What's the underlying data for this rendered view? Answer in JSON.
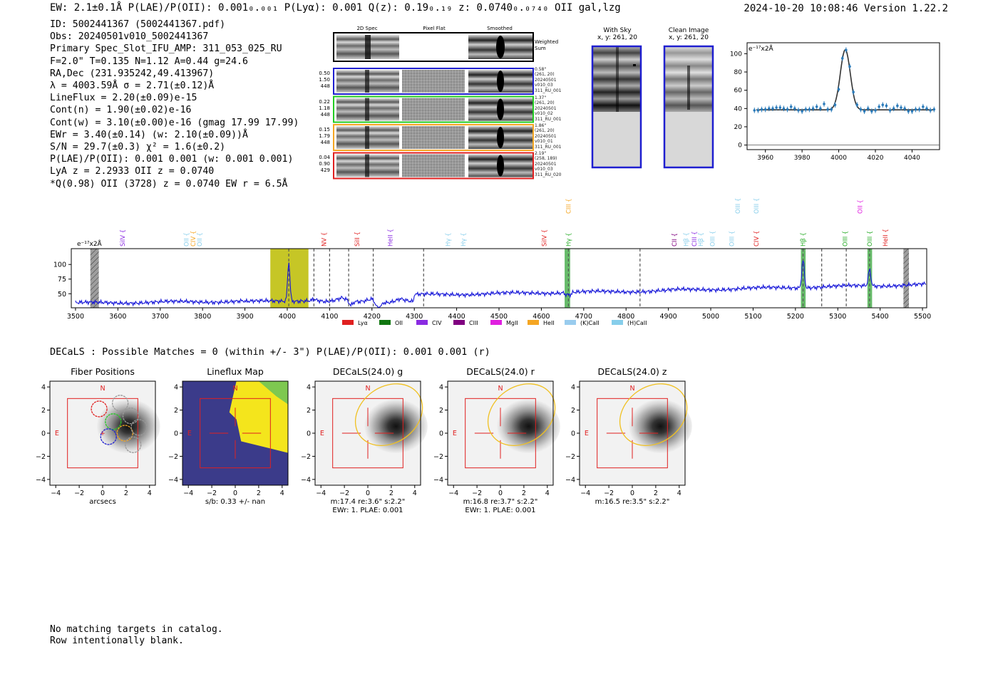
{
  "header": {
    "left": "EW: 2.1±0.1Å  P(LAE)/P(OII): 0.001₀.₀₀₁  P(Lyα): 0.001  Q(z): 0.19₀.₁₉  z: 0.0740₀.₀₇₄₀  OII   gal,lzg",
    "right": "2024-10-20 10:08:46  Version 1.22.2"
  },
  "info_lines": [
    "ID: 5002441367 (5002441367.pdf)",
    "Obs: 20240501v010_5002441367",
    "Primary Spec_Slot_IFU_AMP: 311_053_025_RU",
    "F=2.0\"  T=0.135  N=1.12  A=0.44  g=24.6",
    "RA,Dec (231.935242,49.413967)",
    "λ = 4003.59Å  σ = 2.71(±0.12)Å",
    "LineFlux = 2.20(±0.09)e-15",
    "Cont(n) = 1.90(±0.02)e-16",
    "Cont(w) = 3.10(±0.00)e-16 (gmag 17.99 17.99)",
    "EWr = 3.40(±0.14)  (w: 2.10(±0.09))Å",
    "S/N = 29.7(±0.3)  χ² = 1.6(±0.2)",
    "P(LAE)/P(OII): 0.001 0.001 (w: 0.001 0.001)",
    "LyA z = 2.2933  OII z = 0.0740",
    "*Q(0.98) OII (3728) z = 0.0740  EW r = 6.5Å"
  ],
  "cutouts": {
    "col_headers": [
      "2D Spec",
      "Pixel Flat",
      "Smoothed"
    ],
    "weighted_label": "Weighted Sum",
    "rows": [
      {
        "nums": [
          "0.50",
          "1.50",
          "448"
        ],
        "side": [
          "0.58\"",
          "(261, 20)",
          "20240501",
          "v010_03",
          "311_RU_001"
        ],
        "color": "#1f1fd0"
      },
      {
        "nums": [
          "0.22",
          "1.18",
          "448"
        ],
        "side": [
          "1.37\"",
          "(261, 20)",
          "20240501",
          "v010_02",
          "311_RU_001"
        ],
        "color": "#22cc22"
      },
      {
        "nums": [
          "0.15",
          "1.79",
          "448"
        ],
        "side": [
          "1.86\"",
          "(261, 20)",
          "20240501",
          "v010_01",
          "311_RU_001"
        ],
        "color": "#f5a623"
      },
      {
        "nums": [
          "0.04",
          "0.90",
          "429"
        ],
        "side": [
          "2.19\"",
          "(258, 189)",
          "20240501",
          "v010_03",
          "311_RU_020"
        ],
        "color": "#e02020"
      }
    ],
    "with_sky": {
      "title": "With Sky",
      "coords": "x, y: 261, 20"
    },
    "clean": {
      "title": "Clean Image",
      "coords": "x, y: 261, 20"
    }
  },
  "decals_line": "DECaLS : Possible Matches = 0 (within +/- 3\")  P(LAE)/P(OII): 0.001 0.001 (r)",
  "panels": [
    {
      "title": "Fiber Positions",
      "sub1": "arcsecs",
      "sub2": ""
    },
    {
      "title": "Lineflux Map",
      "sub1": "s/b: 0.33 +/- nan",
      "sub2": ""
    },
    {
      "title": "DECaLS(24.0) g",
      "sub1": "m:17.4  re:3.6\"  s:2.2\"",
      "sub2": "EWr: 1. PLAE: 0.001"
    },
    {
      "title": "DECaLS(24.0) r",
      "sub1": "m:16.8  re:3.7\"  s:2.2\"",
      "sub2": "EWr: 1. PLAE: 0.001"
    },
    {
      "title": "DECaLS(24.0) z",
      "sub1": "m:16.5  re:3.5\"  s:2.2\"",
      "sub2": ""
    }
  ],
  "footer": [
    "No matching targets in catalog.",
    "Row intentionally blank."
  ],
  "chart_data": [
    {
      "type": "scatter",
      "name": "line-fit",
      "ylabel": "e⁻¹⁷x2Å",
      "xlim": [
        3950,
        4055
      ],
      "ylim": [
        -5,
        112
      ],
      "xticks": [
        3960,
        3980,
        4000,
        4020,
        4040
      ],
      "yticks": [
        0,
        20,
        40,
        60,
        80,
        100
      ],
      "fit": {
        "center": 4003.59,
        "sigma": 2.71,
        "amplitude": 66,
        "continuum": 38.5
      },
      "points_x": [
        3954,
        3956,
        3958,
        3960,
        3962,
        3964,
        3966,
        3968,
        3970,
        3972,
        3974,
        3976,
        3978,
        3980,
        3982,
        3984,
        3986,
        3988,
        3990,
        3992,
        3994,
        3996,
        3998,
        4000,
        4002,
        4004,
        4006,
        4008,
        4010,
        4012,
        4014,
        4016,
        4018,
        4020,
        4022,
        4024,
        4026,
        4028,
        4030,
        4032,
        4034,
        4036,
        4038,
        4040,
        4042,
        4044,
        4046,
        4048,
        4050,
        4052
      ],
      "points_y": [
        38,
        38,
        39,
        39,
        40,
        40,
        41,
        41,
        40,
        39,
        42,
        40,
        38,
        37,
        39,
        39,
        40,
        42,
        40,
        45,
        39,
        39,
        44,
        61,
        95,
        104,
        86,
        58,
        44,
        39,
        37,
        40,
        37,
        38,
        42,
        44,
        43,
        38,
        40,
        43,
        41,
        40,
        37,
        37,
        39,
        39,
        42,
        40,
        38,
        39
      ]
    },
    {
      "type": "line",
      "name": "full-spectrum",
      "ylabel": "e⁻¹⁷x2Å",
      "xlim": [
        3490,
        5510
      ],
      "ylim": [
        26,
        127
      ],
      "xticks": [
        3500,
        3600,
        3700,
        3800,
        3900,
        4000,
        4100,
        4200,
        4300,
        4400,
        4500,
        4600,
        4700,
        4800,
        4900,
        5000,
        5100,
        5200,
        5300,
        5400,
        5500
      ],
      "yticks": [
        50,
        75,
        100
      ],
      "peak_a": 4003.59,
      "peak_b": 5218,
      "peak_c": 5375,
      "highlight_bands": [
        {
          "x0": 3960,
          "x1": 4050,
          "color": "#bcbc00"
        },
        {
          "x0": 4655,
          "x1": 4668,
          "color": "#4caf50"
        },
        {
          "x0": 5213,
          "x1": 5224,
          "color": "#4caf50"
        },
        {
          "x0": 5370,
          "x1": 5381,
          "color": "#4caf50"
        }
      ],
      "hatch_bands": [
        {
          "x0": 3535,
          "x1": 3555
        },
        {
          "x0": 5455,
          "x1": 5468
        }
      ],
      "dashed_lines": [
        4003.6,
        4063,
        4100,
        4145,
        4203,
        4322,
        4664,
        4833,
        5218,
        5262,
        5320,
        5375
      ],
      "line_marks": [
        {
          "label": "SiIV",
          "x": 3611,
          "color": "#8a2be2",
          "row": 0
        },
        {
          "label": "OII",
          "x": 3762,
          "color": "#87ceeb",
          "row": 0
        },
        {
          "label": "CIV",
          "x": 3778,
          "color": "#f5a623",
          "row": 0
        },
        {
          "label": "OII",
          "x": 3793,
          "color": "#87ceeb",
          "row": 0
        },
        {
          "label": "NV",
          "x": 4087,
          "color": "#e02020",
          "row": 0
        },
        {
          "label": "SiII",
          "x": 4165,
          "color": "#e02020",
          "row": 0
        },
        {
          "label": "HeII",
          "x": 4243,
          "color": "#8a2be2",
          "row": 0
        },
        {
          "label": "Hγ",
          "x": 4380,
          "color": "#87ceeb",
          "row": 0
        },
        {
          "label": "Hγ",
          "x": 4416,
          "color": "#87ceeb",
          "row": 0
        },
        {
          "label": "SiIV",
          "x": 4607,
          "color": "#e02020",
          "row": 0
        },
        {
          "label": "CIII",
          "x": 4664,
          "color": "#f5a623",
          "row": 1
        },
        {
          "label": "Hγ",
          "x": 4664,
          "color": "#22aa22",
          "row": 0
        },
        {
          "label": "CII",
          "x": 4914,
          "color": "#800080",
          "row": 0
        },
        {
          "label": "Hβ",
          "x": 4942,
          "color": "#87ceeb",
          "row": 0
        },
        {
          "label": "CIII",
          "x": 4961,
          "color": "#8a2be2",
          "row": 0
        },
        {
          "label": "Hβ",
          "x": 4976,
          "color": "#87ceeb",
          "row": 0
        },
        {
          "label": "OIII",
          "x": 5004,
          "color": "#87ceeb",
          "row": 0
        },
        {
          "label": "OIII",
          "x": 5050,
          "color": "#87ceeb",
          "row": 0
        },
        {
          "label": "OIII",
          "x": 5064,
          "color": "#87ceeb",
          "row": 1
        },
        {
          "label": "OIII",
          "x": 5108,
          "color": "#87ceeb",
          "row": 1
        },
        {
          "label": "CIV",
          "x": 5108,
          "color": "#e02020",
          "row": 0
        },
        {
          "label": "Hβ",
          "x": 5218,
          "color": "#22aa22",
          "row": 0
        },
        {
          "label": "OIII",
          "x": 5317,
          "color": "#22aa22",
          "row": 0
        },
        {
          "label": "OII",
          "x": 5353,
          "color": "#e020e0",
          "row": 1
        },
        {
          "label": "OIII",
          "x": 5375,
          "color": "#22aa22",
          "row": 0
        },
        {
          "label": "HeII",
          "x": 5412,
          "color": "#e02020",
          "row": 0
        }
      ],
      "legend": [
        {
          "label": "Lyα",
          "color": "#e02020"
        },
        {
          "label": "OII",
          "color": "#117711"
        },
        {
          "label": "CIV",
          "color": "#8a2be2"
        },
        {
          "label": "CIII",
          "color": "#800080"
        },
        {
          "label": "MgII",
          "color": "#e020e0"
        },
        {
          "label": "HeII",
          "color": "#f5a623"
        },
        {
          "label": "(K)CaII",
          "color": "#99ccee"
        },
        {
          "label": "(H)CaII",
          "color": "#87ceeb"
        }
      ]
    },
    {
      "type": "heatmap",
      "name": "cutout-axes",
      "xlim": [
        -4.5,
        4.5
      ],
      "ylim": [
        -4.5,
        4.5
      ],
      "ticks": [
        -4,
        -2,
        0,
        2,
        4
      ],
      "compass": {
        "north": "N",
        "east": "E"
      }
    }
  ]
}
